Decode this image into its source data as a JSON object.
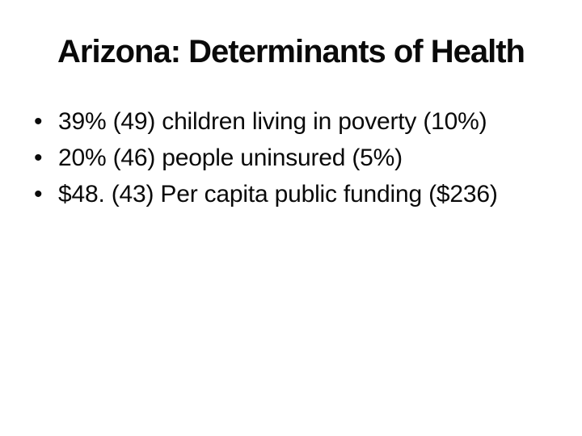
{
  "slide": {
    "title": "Arizona: Determinants of Health",
    "bullets": [
      {
        "marker": "•",
        "text": "39% (49) children living in poverty (10%)"
      },
      {
        "marker": "•",
        "text": "20% (46) people uninsured (5%)"
      },
      {
        "marker": "•",
        "text": "$48. (43) Per capita public funding ($236)"
      }
    ],
    "colors": {
      "background": "#ffffff",
      "text": "#0a0a0a"
    }
  }
}
